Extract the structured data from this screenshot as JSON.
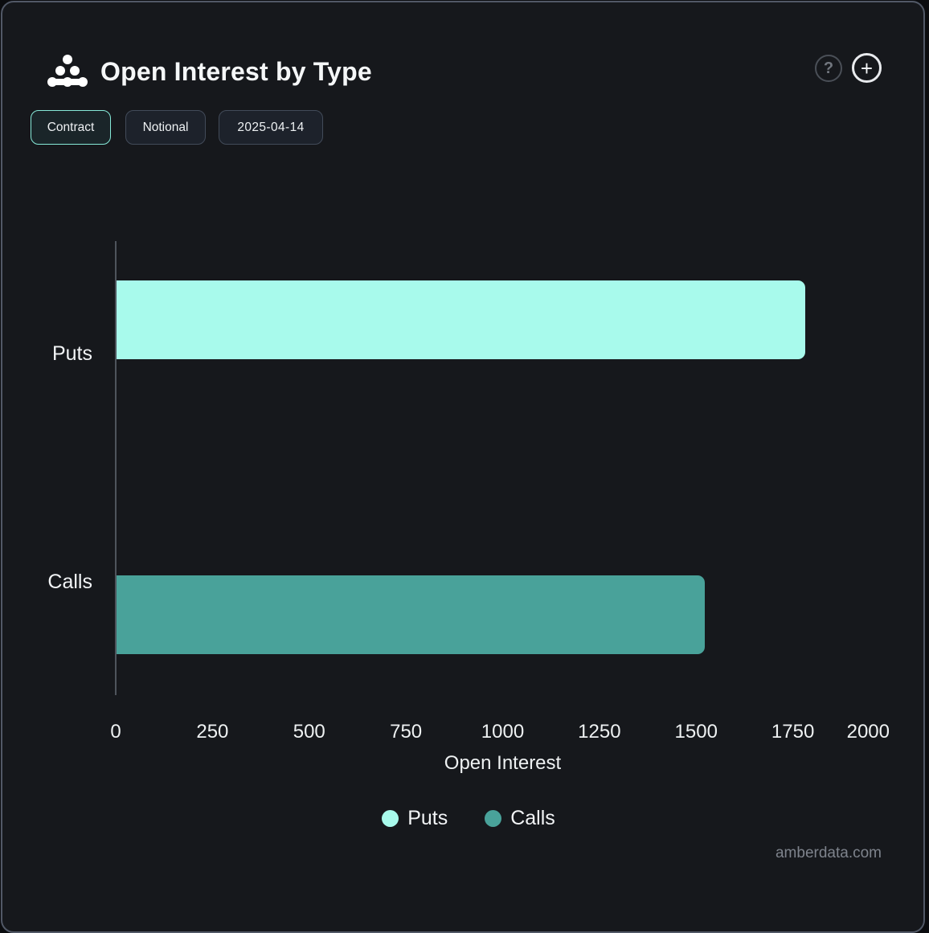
{
  "header": {
    "title": "Open Interest by Type",
    "help_label": "?",
    "add_label": "+"
  },
  "toolbar": {
    "contract_label": "Contract",
    "notional_label": "Notional",
    "date_label": "2025-04-14"
  },
  "chart_data": {
    "type": "bar",
    "orientation": "horizontal",
    "title": "Open Interest by Type",
    "categories": [
      "Puts",
      "Calls"
    ],
    "series": [
      {
        "name": "Puts",
        "category": "Puts",
        "value": 1780,
        "color": "#a8faec"
      },
      {
        "name": "Calls",
        "category": "Calls",
        "value": 1520,
        "color": "#49a29a"
      }
    ],
    "xlabel": "Open Interest",
    "ylabel": "",
    "xlim": [
      0,
      2000
    ],
    "x_ticks": [
      0,
      250,
      500,
      750,
      1000,
      1250,
      1500,
      1750,
      2000
    ],
    "grid": false,
    "legend": {
      "position": "bottom",
      "entries": [
        "Puts",
        "Calls"
      ]
    }
  },
  "watermark": "amberdata.com",
  "colors": {
    "puts_bar": "#a8faec",
    "calls_bar": "#49a29a",
    "card_border": "#515866",
    "active_button_border": "#86e9d8",
    "background": "#16181c"
  }
}
